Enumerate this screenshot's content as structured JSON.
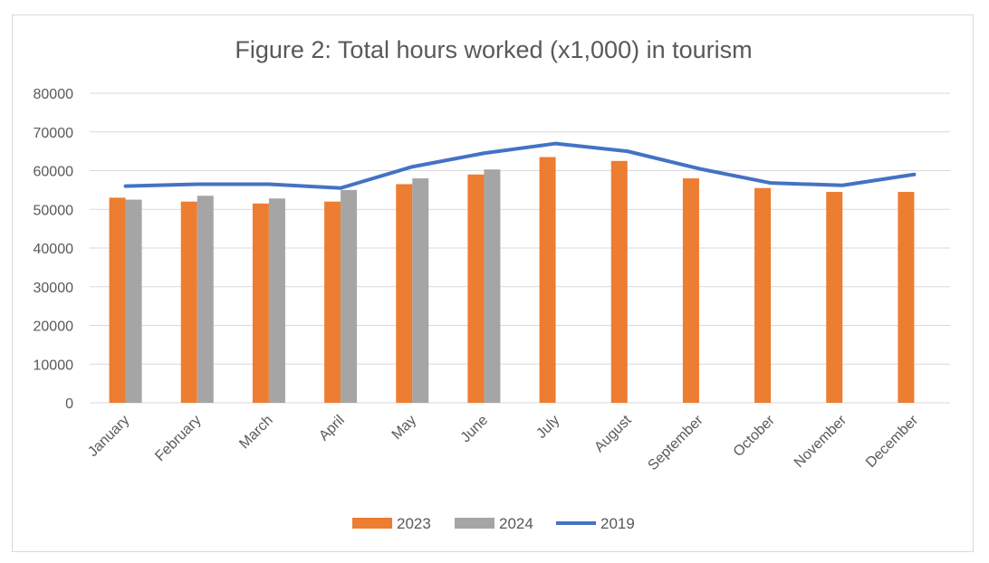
{
  "chart_data": {
    "type": "bar",
    "title": "Figure 2: Total hours worked (x1,000) in tourism",
    "categories": [
      "January",
      "February",
      "March",
      "April",
      "May",
      "June",
      "July",
      "August",
      "September",
      "October",
      "November",
      "December"
    ],
    "series": [
      {
        "name": "2023",
        "type": "bar",
        "color": "#ED7D31",
        "values": [
          53000,
          52000,
          51500,
          52000,
          56500,
          59000,
          63500,
          62500,
          58000,
          55500,
          54500,
          54500
        ]
      },
      {
        "name": "2024",
        "type": "bar",
        "color": "#A5A5A5",
        "values": [
          52500,
          53500,
          52800,
          55000,
          58000,
          60300,
          null,
          null,
          null,
          null,
          null,
          null
        ]
      },
      {
        "name": "2019",
        "type": "line",
        "color": "#4472C4",
        "values": [
          56000,
          56500,
          56500,
          55500,
          61000,
          64500,
          67000,
          65000,
          60500,
          56800,
          56200,
          59000
        ]
      }
    ],
    "ylim": [
      0,
      80000
    ],
    "yticks": [
      "0",
      "10000",
      "20000",
      "30000",
      "40000",
      "50000",
      "60000",
      "70000",
      "80000"
    ],
    "grid": true,
    "legend_position": "bottom"
  }
}
